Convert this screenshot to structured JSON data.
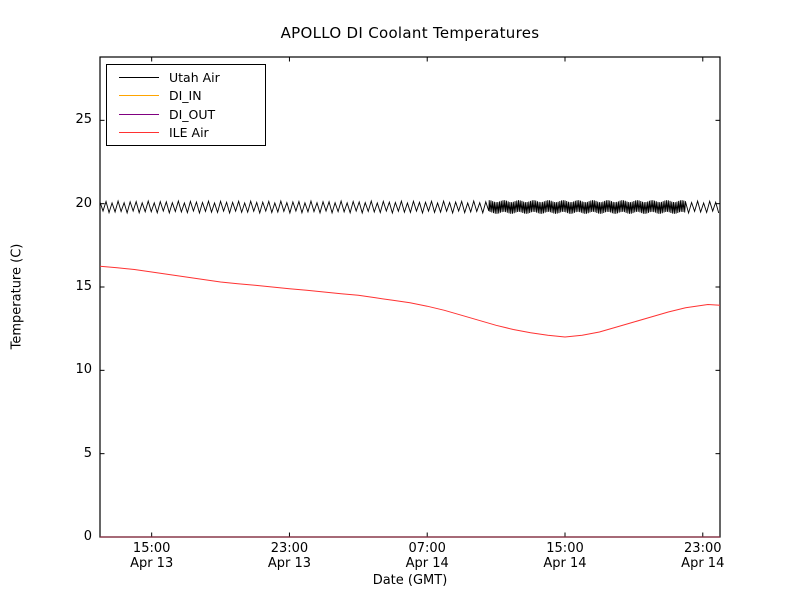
{
  "chart_data": {
    "type": "line",
    "title": "APOLLO DI Coolant Temperatures",
    "xlabel": "Date (GMT)",
    "ylabel": "Temperature (C)",
    "ylim": [
      0,
      28.8
    ],
    "y_ticks": [
      0,
      5,
      10,
      15,
      20,
      25
    ],
    "x_span_hours": 36,
    "x_start": "Apr 13 12:00 GMT",
    "x_ticks": [
      {
        "hour": 3,
        "time": "15:00",
        "date": "Apr 13"
      },
      {
        "hour": 11,
        "time": "23:00",
        "date": "Apr 13"
      },
      {
        "hour": 19,
        "time": "07:00",
        "date": "Apr 14"
      },
      {
        "hour": 27,
        "time": "15:00",
        "date": "Apr 14"
      },
      {
        "hour": 35,
        "time": "23:00",
        "date": "Apr 14"
      }
    ],
    "grid": false,
    "legend_position": "upper left",
    "series": [
      {
        "name": "Utah Air",
        "color": "#000000",
        "type": "oscillation",
        "center": 19.8,
        "segments": [
          {
            "from_hour": 0,
            "to_hour": 22.6,
            "period_hours": 0.35,
            "amplitude": 0.3
          },
          {
            "from_hour": 22.6,
            "to_hour": 34.0,
            "period_hours": 0.1,
            "amplitude": 0.35
          },
          {
            "from_hour": 34.0,
            "to_hour": 36.0,
            "period_hours": 0.35,
            "amplitude": 0.3
          }
        ]
      },
      {
        "name": "DI_IN",
        "color": "#ffa500",
        "type": "constant",
        "value": 0
      },
      {
        "name": "DI_OUT",
        "color": "#800080",
        "type": "constant",
        "value": 0
      },
      {
        "name": "ILE Air",
        "color": "#ff3232",
        "type": "points",
        "points": [
          [
            0,
            16.25
          ],
          [
            1,
            16.15
          ],
          [
            2,
            16.05
          ],
          [
            3,
            15.9
          ],
          [
            4,
            15.75
          ],
          [
            5,
            15.6
          ],
          [
            6,
            15.45
          ],
          [
            7,
            15.3
          ],
          [
            8,
            15.2
          ],
          [
            9,
            15.1
          ],
          [
            10,
            15.0
          ],
          [
            11,
            14.9
          ],
          [
            12,
            14.8
          ],
          [
            13,
            14.7
          ],
          [
            14,
            14.6
          ],
          [
            15,
            14.5
          ],
          [
            16,
            14.35
          ],
          [
            17,
            14.2
          ],
          [
            18,
            14.05
          ],
          [
            19,
            13.85
          ],
          [
            20,
            13.6
          ],
          [
            21,
            13.3
          ],
          [
            22,
            13.0
          ],
          [
            23,
            12.7
          ],
          [
            24,
            12.45
          ],
          [
            25,
            12.25
          ],
          [
            26,
            12.1
          ],
          [
            27,
            12.0
          ],
          [
            28,
            12.1
          ],
          [
            29,
            12.3
          ],
          [
            30,
            12.6
          ],
          [
            31,
            12.9
          ],
          [
            32,
            13.2
          ],
          [
            33,
            13.5
          ],
          [
            34,
            13.75
          ],
          [
            35,
            13.9
          ],
          [
            35.3,
            13.95
          ],
          [
            36,
            13.9
          ]
        ]
      }
    ]
  }
}
